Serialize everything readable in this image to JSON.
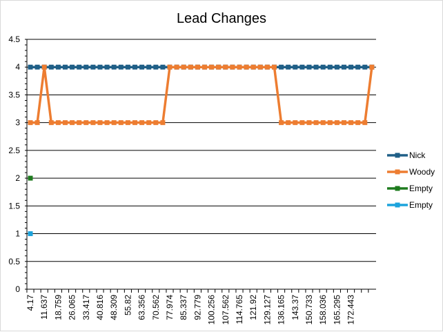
{
  "chart_data": {
    "type": "line",
    "title": "Lead Changes",
    "xlabel": "",
    "ylabel": "",
    "ylim": [
      0,
      4.5
    ],
    "y_ticks": [
      "0",
      "0.5",
      "1",
      "1.5",
      "2",
      "2.5",
      "3",
      "3.5",
      "4",
      "4.5"
    ],
    "x_tick_labels": [
      "4.17",
      "11.637",
      "18.759",
      "26.065",
      "33.417",
      "40.816",
      "48.309",
      "55.82",
      "63.356",
      "70.562",
      "77.974",
      "85.337",
      "92.779",
      "100.256",
      "107.562",
      "114.765",
      "121.92",
      "129.127",
      "136.165",
      "143.37",
      "150.733",
      "158.036",
      "165.295",
      "172.443"
    ],
    "point_count": 50,
    "grid": true,
    "legend_position": "right",
    "series": [
      {
        "name": "Nick",
        "color": "#1f5f87",
        "values": [
          4,
          4,
          4,
          4,
          4,
          4,
          4,
          4,
          4,
          4,
          4,
          4,
          4,
          4,
          4,
          4,
          4,
          4,
          4,
          4,
          4,
          4,
          4,
          4,
          4,
          4,
          4,
          4,
          4,
          4,
          4,
          4,
          4,
          4,
          4,
          4,
          4,
          4,
          4,
          4,
          4,
          4,
          4,
          4,
          4,
          4,
          4,
          4,
          4,
          4
        ]
      },
      {
        "name": "Woody",
        "color": "#ed7d31",
        "values": [
          3,
          3,
          4,
          3,
          3,
          3,
          3,
          3,
          3,
          3,
          3,
          3,
          3,
          3,
          3,
          3,
          3,
          3,
          3,
          3,
          4,
          4,
          4,
          4,
          4,
          4,
          4,
          4,
          4,
          4,
          4,
          4,
          4,
          4,
          4,
          4,
          3,
          3,
          3,
          3,
          3,
          3,
          3,
          3,
          3,
          3,
          3,
          3,
          3,
          4
        ]
      },
      {
        "name": "Empty",
        "color": "#1e7b1e",
        "values": [
          2
        ]
      },
      {
        "name": "Empty",
        "color": "#1ca3dc",
        "values": [
          1
        ]
      }
    ]
  }
}
